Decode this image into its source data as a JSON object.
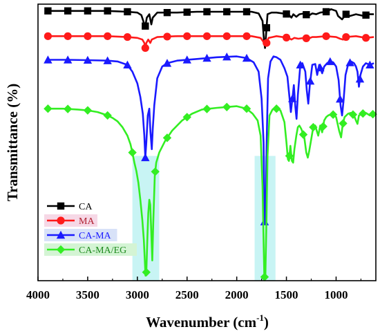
{
  "chart_data": {
    "type": "line",
    "xlabel": "Wavenumber (cm",
    "xlabel_sup": "-1",
    "xlabel_close": ")",
    "ylabel": "Transmittance (%)",
    "xlim": [
      4000,
      600
    ],
    "x_reversed": true,
    "xticks": [
      4000,
      3500,
      3000,
      2500,
      2000,
      1500,
      1000
    ],
    "y_ticks_shown": false,
    "legend_position": "lower-left",
    "highlight_bands": [
      {
        "from": 3050,
        "to": 2780,
        "color": "#c8f4f4"
      },
      {
        "from": 1820,
        "to": 1610,
        "color": "#c8f4f4"
      }
    ],
    "series": [
      {
        "name": "CA",
        "color": "#000000",
        "marker": "square",
        "points": [
          [
            3900,
            96
          ],
          [
            3700,
            96
          ],
          [
            3500,
            96
          ],
          [
            3300,
            96
          ],
          [
            3100,
            95.5
          ],
          [
            3000,
            95
          ],
          [
            2960,
            93.5
          ],
          [
            2935,
            89
          ],
          [
            2920,
            87
          ],
          [
            2905,
            92
          ],
          [
            2880,
            94
          ],
          [
            2860,
            88
          ],
          [
            2845,
            92
          ],
          [
            2800,
            95
          ],
          [
            2600,
            95
          ],
          [
            2400,
            95.5
          ],
          [
            2200,
            95.5
          ],
          [
            2000,
            95.5
          ],
          [
            1850,
            95.5
          ],
          [
            1780,
            94.5
          ],
          [
            1740,
            90
          ],
          [
            1725,
            78
          ],
          [
            1715,
            74
          ],
          [
            1705,
            82
          ],
          [
            1690,
            94
          ],
          [
            1650,
            95
          ],
          [
            1600,
            95
          ],
          [
            1480,
            94
          ],
          [
            1450,
            92
          ],
          [
            1430,
            94
          ],
          [
            1400,
            92.5
          ],
          [
            1370,
            94
          ],
          [
            1320,
            94.5
          ],
          [
            1280,
            93
          ],
          [
            1240,
            94.5
          ],
          [
            1200,
            94
          ],
          [
            1160,
            95
          ],
          [
            1100,
            95.5
          ],
          [
            1050,
            97
          ],
          [
            1000,
            96
          ],
          [
            980,
            93
          ],
          [
            940,
            91
          ],
          [
            900,
            94
          ],
          [
            860,
            93
          ],
          [
            800,
            94
          ],
          [
            760,
            93.5
          ],
          [
            720,
            93
          ],
          [
            680,
            94
          ],
          [
            620,
            94
          ]
        ],
        "marker_x": [
          3900,
          3700,
          3500,
          3300,
          3100,
          2920,
          2700,
          2500,
          2300,
          2100,
          1900,
          1700,
          1500,
          1300,
          1100,
          900,
          700
        ]
      },
      {
        "name": "MA",
        "color": "#ff1a1a",
        "marker": "circle",
        "points": [
          [
            3900,
            81
          ],
          [
            3700,
            81
          ],
          [
            3500,
            81
          ],
          [
            3300,
            81
          ],
          [
            3100,
            80.5
          ],
          [
            3000,
            80
          ],
          [
            2950,
            79
          ],
          [
            2930,
            77
          ],
          [
            2920,
            74
          ],
          [
            2910,
            77
          ],
          [
            2890,
            79
          ],
          [
            2870,
            77
          ],
          [
            2855,
            79
          ],
          [
            2800,
            80.5
          ],
          [
            2600,
            81
          ],
          [
            2400,
            81
          ],
          [
            2200,
            81
          ],
          [
            2000,
            81
          ],
          [
            1850,
            81
          ],
          [
            1760,
            80
          ],
          [
            1730,
            77.5
          ],
          [
            1715,
            76
          ],
          [
            1700,
            77
          ],
          [
            1680,
            80
          ],
          [
            1640,
            80.5
          ],
          [
            1600,
            81
          ],
          [
            1480,
            80
          ],
          [
            1450,
            79
          ],
          [
            1420,
            80
          ],
          [
            1380,
            79.5
          ],
          [
            1320,
            80
          ],
          [
            1280,
            79.5
          ],
          [
            1240,
            80.5
          ],
          [
            1200,
            80.5
          ],
          [
            1100,
            81
          ],
          [
            1000,
            80.5
          ],
          [
            960,
            79.5
          ],
          [
            930,
            79
          ],
          [
            900,
            80.5
          ],
          [
            800,
            81
          ],
          [
            700,
            80
          ],
          [
            620,
            80.5
          ]
        ],
        "marker_x": [
          3900,
          3700,
          3500,
          3300,
          3100,
          2920,
          2700,
          2500,
          2300,
          2100,
          1900,
          1700,
          1500,
          1300,
          1100,
          900,
          700
        ]
      },
      {
        "name": "CA-MA",
        "color": "#1a1aff",
        "marker": "triangle",
        "points": [
          [
            3900,
            67
          ],
          [
            3700,
            67
          ],
          [
            3500,
            66.8
          ],
          [
            3300,
            66.5
          ],
          [
            3200,
            66
          ],
          [
            3100,
            64
          ],
          [
            3050,
            60
          ],
          [
            3000,
            53
          ],
          [
            2970,
            45
          ],
          [
            2945,
            35
          ],
          [
            2930,
            22
          ],
          [
            2920,
            9
          ],
          [
            2910,
            18
          ],
          [
            2895,
            34
          ],
          [
            2880,
            38
          ],
          [
            2868,
            24
          ],
          [
            2855,
            14
          ],
          [
            2845,
            26
          ],
          [
            2830,
            40
          ],
          [
            2800,
            56
          ],
          [
            2750,
            63
          ],
          [
            2700,
            65
          ],
          [
            2600,
            66.5
          ],
          [
            2400,
            67.5
          ],
          [
            2200,
            68.5
          ],
          [
            2000,
            69
          ],
          [
            1900,
            68
          ],
          [
            1830,
            65.5
          ],
          [
            1780,
            60
          ],
          [
            1750,
            44
          ],
          [
            1730,
            18
          ],
          [
            1720,
            -29
          ],
          [
            1710,
            -28
          ],
          [
            1700,
            15
          ],
          [
            1685,
            56
          ],
          [
            1660,
            66
          ],
          [
            1630,
            69
          ],
          [
            1600,
            68.5
          ],
          [
            1560,
            67
          ],
          [
            1520,
            62
          ],
          [
            1490,
            57
          ],
          [
            1470,
            45
          ],
          [
            1455,
            36
          ],
          [
            1440,
            44
          ],
          [
            1425,
            52
          ],
          [
            1410,
            39
          ],
          [
            1398,
            32
          ],
          [
            1385,
            46
          ],
          [
            1370,
            57
          ],
          [
            1360,
            64
          ],
          [
            1340,
            65
          ],
          [
            1310,
            60
          ],
          [
            1295,
            49
          ],
          [
            1280,
            41
          ],
          [
            1265,
            52
          ],
          [
            1240,
            64
          ],
          [
            1210,
            64.5
          ],
          [
            1190,
            58
          ],
          [
            1170,
            64
          ],
          [
            1140,
            59
          ],
          [
            1120,
            63
          ],
          [
            1090,
            65
          ],
          [
            1060,
            66
          ],
          [
            1030,
            65.5
          ],
          [
            1000,
            63
          ],
          [
            975,
            55
          ],
          [
            955,
            40
          ],
          [
            940,
            34
          ],
          [
            925,
            43
          ],
          [
            905,
            58
          ],
          [
            880,
            64
          ],
          [
            850,
            66
          ],
          [
            820,
            65
          ],
          [
            800,
            63
          ],
          [
            785,
            60
          ],
          [
            770,
            51
          ],
          [
            755,
            58
          ],
          [
            730,
            63
          ],
          [
            700,
            65
          ],
          [
            660,
            64
          ],
          [
            620,
            65
          ]
        ],
        "marker_x": [
          3900,
          3700,
          3500,
          3300,
          3100,
          2920,
          2700,
          2500,
          2300,
          2100,
          1900,
          1720,
          1440,
          1360,
          1260,
          1160,
          1060,
          960,
          860,
          760,
          660
        ]
      },
      {
        "name": "CA-MA/EG",
        "color": "#33ee22",
        "marker": "diamond",
        "points": [
          [
            3900,
            38
          ],
          [
            3750,
            38
          ],
          [
            3600,
            37.5
          ],
          [
            3500,
            37
          ],
          [
            3450,
            36.5
          ],
          [
            3400,
            36
          ],
          [
            3350,
            35
          ],
          [
            3300,
            34
          ],
          [
            3250,
            32.5
          ],
          [
            3200,
            30.5
          ],
          [
            3150,
            27
          ],
          [
            3100,
            22
          ],
          [
            3070,
            17
          ],
          [
            3050,
            12
          ],
          [
            3030,
            6
          ],
          [
            3010,
            1
          ],
          [
            2990,
            -6
          ],
          [
            2970,
            -16
          ],
          [
            2950,
            -28
          ],
          [
            2935,
            -40
          ],
          [
            2925,
            -52
          ],
          [
            2918,
            -61
          ],
          [
            2910,
            -59
          ],
          [
            2900,
            -40
          ],
          [
            2890,
            -24
          ],
          [
            2880,
            -16
          ],
          [
            2870,
            -19
          ],
          [
            2860,
            -36
          ],
          [
            2850,
            -52
          ],
          [
            2840,
            -30
          ],
          [
            2825,
            -2
          ],
          [
            2810,
            6
          ],
          [
            2780,
            12
          ],
          [
            2720,
            19
          ],
          [
            2650,
            25
          ],
          [
            2550,
            31
          ],
          [
            2450,
            35
          ],
          [
            2350,
            37.5
          ],
          [
            2200,
            38.5
          ],
          [
            2100,
            39
          ],
          [
            2000,
            39.5
          ],
          [
            1900,
            38
          ],
          [
            1840,
            35
          ],
          [
            1790,
            31
          ],
          [
            1760,
            22
          ],
          [
            1740,
            -8
          ],
          [
            1730,
            -40
          ],
          [
            1722,
            -62
          ],
          [
            1712,
            -61
          ],
          [
            1700,
            -25
          ],
          [
            1690,
            10
          ],
          [
            1670,
            34
          ],
          [
            1640,
            37.5
          ],
          [
            1600,
            38
          ],
          [
            1560,
            37
          ],
          [
            1520,
            30
          ],
          [
            1500,
            18
          ],
          [
            1485,
            8
          ],
          [
            1475,
            7
          ],
          [
            1460,
            16
          ],
          [
            1445,
            7
          ],
          [
            1432,
            6
          ],
          [
            1420,
            14
          ],
          [
            1400,
            22
          ],
          [
            1385,
            27
          ],
          [
            1370,
            28
          ],
          [
            1350,
            26
          ],
          [
            1320,
            21
          ],
          [
            1300,
            12
          ],
          [
            1285,
            9
          ],
          [
            1270,
            13
          ],
          [
            1250,
            20
          ],
          [
            1230,
            27
          ],
          [
            1210,
            28
          ],
          [
            1195,
            25
          ],
          [
            1180,
            22
          ],
          [
            1160,
            28
          ],
          [
            1140,
            24
          ],
          [
            1120,
            31
          ],
          [
            1100,
            33
          ],
          [
            1080,
            34
          ],
          [
            1040,
            35
          ],
          [
            1000,
            33
          ],
          [
            970,
            25
          ],
          [
            950,
            21
          ],
          [
            935,
            28
          ],
          [
            915,
            33
          ],
          [
            880,
            35
          ],
          [
            850,
            35.5
          ],
          [
            820,
            34
          ],
          [
            800,
            31
          ],
          [
            785,
            29
          ],
          [
            770,
            34
          ],
          [
            740,
            35
          ],
          [
            700,
            35.5
          ],
          [
            660,
            34
          ],
          [
            620,
            35
          ]
        ],
        "marker_x": [
          3900,
          3700,
          3500,
          3300,
          3050,
          2910,
          2820,
          2700,
          2500,
          2300,
          2100,
          1900,
          1720,
          1600,
          1470,
          1330,
          1230,
          1130,
          1030,
          930,
          830,
          730,
          630
        ]
      }
    ]
  },
  "legend": {
    "items": [
      {
        "label": "CA",
        "color": "#000000",
        "text_color": "#000000",
        "bg": "none"
      },
      {
        "label": "MA",
        "color": "#ff1a1a",
        "text_color": "#b02030",
        "bg": "#f6d8e6"
      },
      {
        "label": "CA-MA",
        "color": "#1a1aff",
        "text_color": "#1a1aff",
        "bg": "#d8e2f8"
      },
      {
        "label": "CA-MA/EG",
        "color": "#33ee22",
        "text_color": "#1e8a1e",
        "bg": "#d4f4d4"
      }
    ]
  }
}
